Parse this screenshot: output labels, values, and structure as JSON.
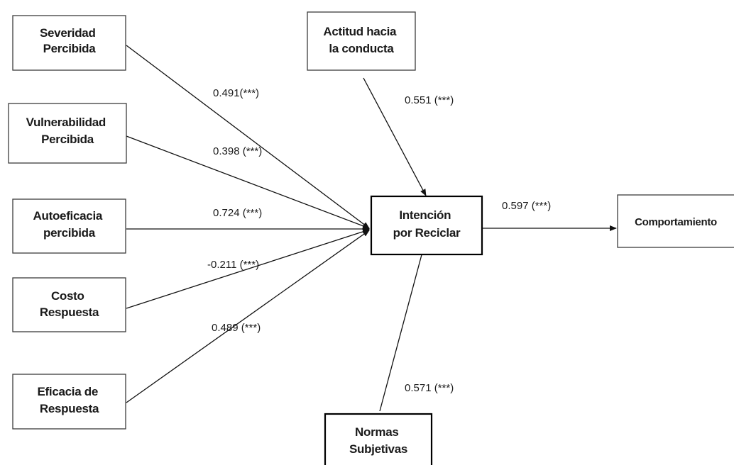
{
  "nodes": {
    "severidad": {
      "lines": [
        "Severidad",
        "Percibida"
      ]
    },
    "vulnerabilidad": {
      "lines": [
        "Vulnerabilidad",
        "Percibida"
      ]
    },
    "autoeficacia": {
      "lines": [
        "Autoeficacia",
        "percibida"
      ]
    },
    "costo": {
      "lines": [
        "Costo",
        "Respuesta"
      ]
    },
    "eficacia": {
      "lines": [
        "Eficacia de",
        "Respuesta"
      ]
    },
    "actitud": {
      "lines": [
        "Actitud hacia",
        "la conducta"
      ]
    },
    "intencion": {
      "lines": [
        "Intención",
        "por Reciclar"
      ]
    },
    "normas": {
      "lines": [
        "Normas",
        "Subjetivas"
      ]
    },
    "comportamiento": {
      "lines": [
        "Comportamiento"
      ]
    }
  },
  "paths": {
    "severidad": "0.491(***)",
    "vulnerabilidad": "0.398 (***)",
    "autoeficacia": "0.724 (***)",
    "costo": "-0.211 (***)",
    "eficacia": "0.489 (***)",
    "actitud": "0.551 (***)",
    "normas": "0.571 (***)",
    "intencion": "0.597 (***)"
  },
  "colors": {
    "box_border": "#3c3c3c",
    "central_border": "#000000",
    "line": "#111111",
    "text": "#1a1a1a",
    "background": "#ffffff"
  }
}
